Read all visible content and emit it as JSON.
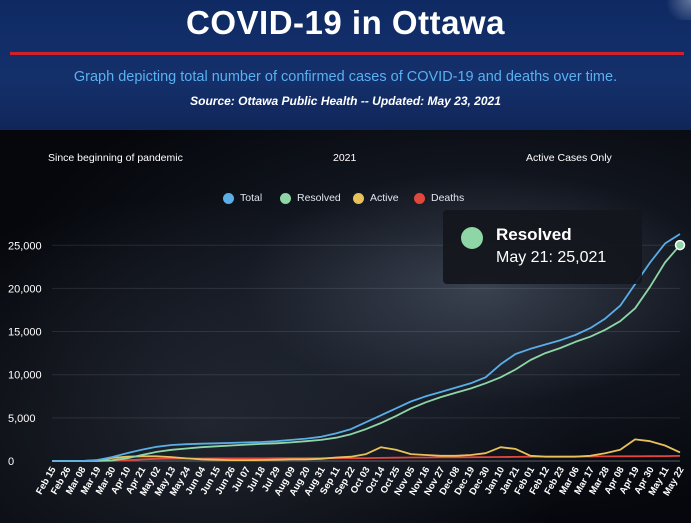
{
  "header": {
    "title": "COVID-19 in Ottawa",
    "subtitle": "Graph depicting total number of confirmed cases of COVID-19 and deaths over time.",
    "source": "Source:  Ottawa Public Health -- Updated:  May 23, 2021"
  },
  "tabs": [
    {
      "label": "Since beginning of pandemic"
    },
    {
      "label": "2021"
    },
    {
      "label": "Active Cases Only"
    }
  ],
  "tooltip": {
    "series": "Resolved",
    "text": "May 21: 25,021",
    "color": "#8fd6a6"
  },
  "colors": {
    "total": "#5aaee8",
    "resolved": "#8fd6a6",
    "active": "#e8c15a",
    "deaths": "#e0473e"
  },
  "chart_data": {
    "type": "line",
    "yticks": [
      "0",
      "5,000",
      "10,000",
      "15,000",
      "20,000",
      "25,000"
    ],
    "ylim": [
      0,
      27000
    ],
    "grid": true,
    "legend_position": "top-center",
    "x": [
      "Feb 15",
      "Feb 26",
      "Mar 08",
      "Mar 19",
      "Mar 30",
      "Apr 10",
      "Apr 21",
      "May 02",
      "May 13",
      "May 24",
      "Jun 04",
      "Jun 15",
      "Jun 26",
      "Jul 07",
      "Jul 18",
      "Jul 29",
      "Aug 09",
      "Aug 20",
      "Aug 31",
      "Sep 11",
      "Sep 22",
      "Oct 03",
      "Oct 14",
      "Oct 25",
      "Nov 05",
      "Nov 16",
      "Nov 27",
      "Dec 08",
      "Dec 19",
      "Dec 30",
      "Jan 10",
      "Jan 21",
      "Feb 01",
      "Feb 12",
      "Feb 23",
      "Mar 06",
      "Mar 17",
      "Mar 28",
      "Apr 08",
      "Apr 19",
      "Apr 30",
      "May 11",
      "May 22"
    ],
    "series": [
      {
        "name": "Total",
        "values": [
          0,
          0,
          0,
          100,
          450,
          900,
          1300,
          1650,
          1850,
          1950,
          2000,
          2050,
          2100,
          2150,
          2200,
          2300,
          2450,
          2600,
          2800,
          3200,
          3700,
          4500,
          5300,
          6100,
          6900,
          7500,
          8000,
          8500,
          9000,
          9700,
          11200,
          12400,
          13000,
          13500,
          14000,
          14600,
          15400,
          16500,
          18000,
          20500,
          23000,
          25200,
          26300
        ]
      },
      {
        "name": "Resolved",
        "values": [
          0,
          0,
          0,
          10,
          80,
          300,
          700,
          1050,
          1300,
          1450,
          1600,
          1700,
          1800,
          1900,
          1980,
          2050,
          2150,
          2300,
          2450,
          2700,
          3100,
          3700,
          4400,
          5200,
          6100,
          6800,
          7400,
          7900,
          8400,
          9000,
          9700,
          10600,
          11700,
          12500,
          13100,
          13800,
          14400,
          15200,
          16200,
          17700,
          20200,
          23000,
          25021
        ]
      },
      {
        "name": "Active",
        "values": [
          0,
          0,
          0,
          90,
          350,
          500,
          550,
          550,
          450,
          300,
          200,
          150,
          100,
          100,
          120,
          150,
          200,
          200,
          250,
          400,
          500,
          800,
          1600,
          1300,
          800,
          700,
          600,
          600,
          700,
          900,
          1600,
          1400,
          600,
          500,
          500,
          500,
          600,
          900,
          1300,
          2500,
          2300,
          1800,
          1000
        ]
      },
      {
        "name": "Deaths",
        "values": [
          0,
          0,
          0,
          0,
          20,
          80,
          180,
          250,
          280,
          290,
          295,
          300,
          300,
          305,
          305,
          310,
          310,
          315,
          320,
          325,
          330,
          340,
          360,
          380,
          400,
          410,
          420,
          430,
          440,
          450,
          460,
          480,
          500,
          510,
          515,
          520,
          525,
          530,
          540,
          550,
          560,
          570,
          590
        ]
      }
    ]
  }
}
